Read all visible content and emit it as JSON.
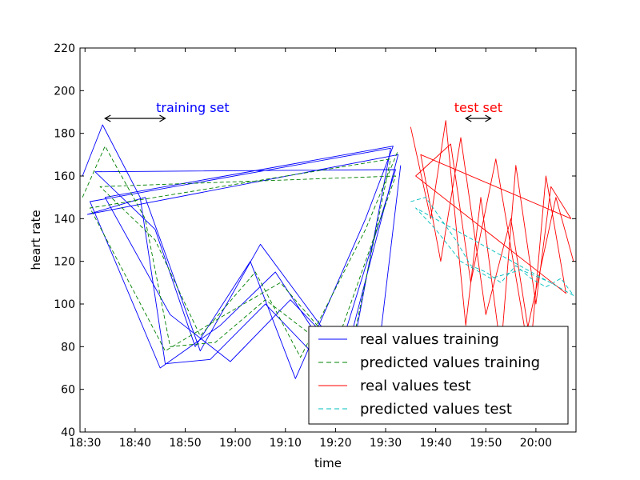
{
  "chart_data": {
    "type": "line",
    "xlabel": "time",
    "ylabel": "heart rate",
    "ylim": [
      40,
      220
    ],
    "xlim": [
      "18:29:00",
      "20:08:00"
    ],
    "x_ticks": [
      "18:30",
      "18:40",
      "18:50",
      "19:00",
      "19:10",
      "19:20",
      "19:30",
      "19:40",
      "19:50",
      "20:00"
    ],
    "y_ticks": [
      40,
      60,
      80,
      100,
      120,
      140,
      160,
      180,
      200,
      220
    ],
    "grid": false,
    "legend_position": "lower-right",
    "colors": {
      "real_training": "#0000ff",
      "predicted_training": "#008000",
      "real_test": "#ff0000",
      "predicted_test": "#00bfbf",
      "arrow": "#000000"
    },
    "series": [
      {
        "name": "real values training",
        "style": "solid",
        "color": "#0000ff",
        "x": [
          "18:29:30",
          "18:33:30",
          "18:41:00",
          "18:46:00",
          "18:55:00",
          "19:06:00",
          "19:15:00",
          "19:24:00",
          "19:31:00",
          "18:31:00",
          "18:45:00",
          "18:57:00",
          "19:08:00",
          "19:20:00",
          "19:32:00",
          "18:32:00",
          "18:44:00",
          "18:52:00",
          "19:03:00",
          "19:12:00",
          "19:26:00",
          "19:31:30",
          "18:34:00",
          "18:47:00",
          "18:59:00",
          "19:11:00",
          "19:22:00",
          "19:32:30",
          "18:30:30",
          "18:42:00",
          "18:53:00",
          "19:05:00",
          "19:17:00",
          "19:28:00",
          "19:33:00"
        ],
        "values": [
          160,
          184,
          150,
          72,
          74,
          100,
          78,
          85,
          173,
          148,
          70,
          90,
          115,
          72,
          163,
          162,
          135,
          80,
          120,
          65,
          140,
          174,
          150,
          95,
          73,
          102,
          75,
          170,
          142,
          150,
          78,
          128,
          90,
          66,
          165
        ]
      },
      {
        "name": "predicted values training",
        "style": "dashed",
        "color": "#008000",
        "x": [
          "18:29:30",
          "18:34:00",
          "18:42:00",
          "18:47:00",
          "18:56:00",
          "19:06:00",
          "19:16:00",
          "19:24:00",
          "19:31:00",
          "18:31:00",
          "18:46:00",
          "18:58:00",
          "19:09:00",
          "19:20:00",
          "19:32:00",
          "18:33:00",
          "18:44:00",
          "18:53:00",
          "19:04:00",
          "19:13:00",
          "19:26:00",
          "19:32:30"
        ],
        "values": [
          150,
          174,
          140,
          80,
          82,
          102,
          84,
          88,
          168,
          145,
          78,
          95,
          110,
          80,
          160,
          155,
          130,
          85,
          115,
          75,
          135,
          172
        ]
      },
      {
        "name": "real values test",
        "style": "solid",
        "color": "#ff0000",
        "x": [
          "19:35:00",
          "19:39:00",
          "19:42:00",
          "19:46:00",
          "19:49:00",
          "19:53:00",
          "19:56:00",
          "20:00:00",
          "20:03:00",
          "20:07:00",
          "19:37:00",
          "19:41:00",
          "19:45:00",
          "19:50:00",
          "19:55:00",
          "19:59:00",
          "20:02:00",
          "20:06:00",
          "19:36:00",
          "19:43:00",
          "19:47:00",
          "19:52:00",
          "19:58:00",
          "20:04:00",
          "20:07:30"
        ],
        "values": [
          183,
          140,
          186,
          90,
          150,
          78,
          165,
          100,
          155,
          140,
          170,
          120,
          178,
          95,
          140,
          80,
          160,
          105,
          160,
          175,
          110,
          168,
          85,
          150,
          120
        ]
      },
      {
        "name": "predicted values test",
        "style": "dashed",
        "color": "#00bfbf",
        "x": [
          "19:35:00",
          "19:38:00",
          "19:41:00",
          "19:44:00",
          "19:47:00",
          "19:50:00",
          "19:53:00",
          "19:56:00",
          "19:59:00",
          "20:02:00",
          "20:05:00",
          "20:07:30",
          "19:36:00",
          "19:40:00",
          "19:45:00",
          "19:51:00",
          "19:57:00",
          "20:03:00"
        ],
        "values": [
          148,
          150,
          140,
          130,
          118,
          115,
          110,
          118,
          112,
          108,
          112,
          104,
          145,
          135,
          120,
          112,
          116,
          110
        ]
      }
    ],
    "annotations": [
      {
        "text": "training set",
        "color": "#0000ff",
        "arrow_from": "18:34:00",
        "arrow_to": "18:46:00",
        "arrow_y": 187,
        "text_x": "18:51:30",
        "text_y": 190
      },
      {
        "text": "test set",
        "color": "#ff0000",
        "arrow_from": "19:46:00",
        "arrow_to": "19:51:00",
        "arrow_y": 187,
        "text_x": "19:48:30",
        "text_y": 190
      }
    ]
  }
}
